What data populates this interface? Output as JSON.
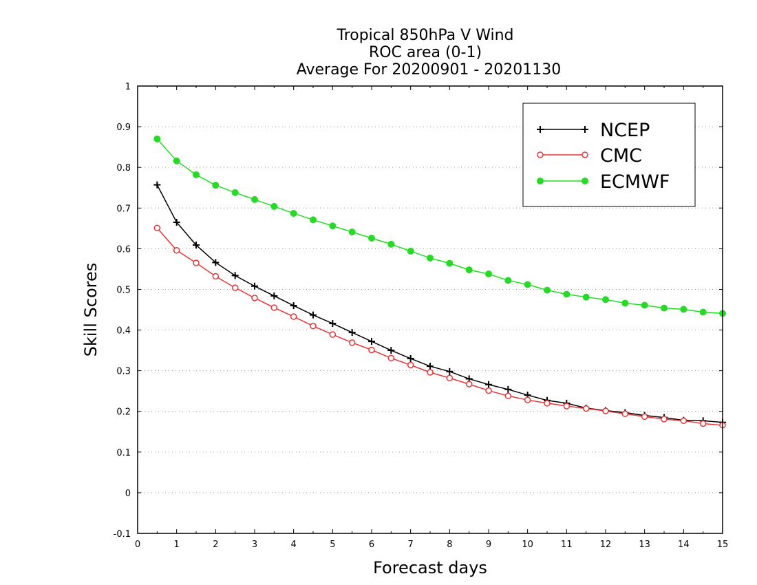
{
  "chart_data": {
    "type": "line",
    "title_lines": [
      "Tropical 850hPa V Wind",
      "ROC area (0-1)",
      "Average For 20200901 - 20201130"
    ],
    "xlabel": "Forecast days",
    "ylabel": "Skill Scores",
    "xlim": [
      0,
      15
    ],
    "ylim": [
      -0.1,
      1
    ],
    "xticks": [
      0,
      1,
      2,
      3,
      4,
      5,
      6,
      7,
      8,
      9,
      10,
      11,
      12,
      13,
      14,
      15
    ],
    "yticks": [
      -0.1,
      0,
      0.1,
      0.2,
      0.3,
      0.4,
      0.5,
      0.6,
      0.7,
      0.8,
      0.9,
      1
    ],
    "ytick_labels": [
      "-0.1",
      "0",
      "0.1",
      "0.2",
      "0.3",
      "0.4",
      "0.5",
      "0.6",
      "0.7",
      "0.8",
      "0.9",
      "1"
    ],
    "grid": "horizontal dotted",
    "legend_position": "top-right",
    "x": [
      0.5,
      1,
      1.5,
      2,
      2.5,
      3,
      3.5,
      4,
      4.5,
      5,
      5.5,
      6,
      6.5,
      7,
      7.5,
      8,
      8.5,
      9,
      9.5,
      10,
      10.5,
      11,
      11.5,
      12,
      12.5,
      13,
      13.5,
      14,
      14.5,
      15
    ],
    "series": [
      {
        "name": "NCEP",
        "color": "#000000",
        "marker": "plus",
        "values": [
          0.757,
          0.665,
          0.609,
          0.566,
          0.534,
          0.508,
          0.484,
          0.46,
          0.437,
          0.416,
          0.394,
          0.372,
          0.35,
          0.33,
          0.311,
          0.298,
          0.28,
          0.266,
          0.254,
          0.24,
          0.227,
          0.22,
          0.208,
          0.202,
          0.197,
          0.19,
          0.185,
          0.178,
          0.177,
          0.173
        ]
      },
      {
        "name": "CMC",
        "color": "#ee3333",
        "marker": "open-circle",
        "values": [
          0.651,
          0.596,
          0.565,
          0.532,
          0.504,
          0.479,
          0.455,
          0.433,
          0.41,
          0.389,
          0.369,
          0.351,
          0.331,
          0.314,
          0.296,
          0.282,
          0.267,
          0.251,
          0.238,
          0.228,
          0.22,
          0.213,
          0.207,
          0.201,
          0.194,
          0.187,
          0.181,
          0.177,
          0.17,
          0.166
        ]
      },
      {
        "name": "ECMWF",
        "color": "#22dd22",
        "marker": "filled-circle",
        "values": [
          0.87,
          0.816,
          0.782,
          0.756,
          0.738,
          0.721,
          0.704,
          0.687,
          0.671,
          0.656,
          0.641,
          0.626,
          0.611,
          0.594,
          0.577,
          0.564,
          0.548,
          0.538,
          0.522,
          0.512,
          0.498,
          0.488,
          0.481,
          0.475,
          0.466,
          0.461,
          0.454,
          0.451,
          0.444,
          0.441
        ]
      }
    ]
  }
}
